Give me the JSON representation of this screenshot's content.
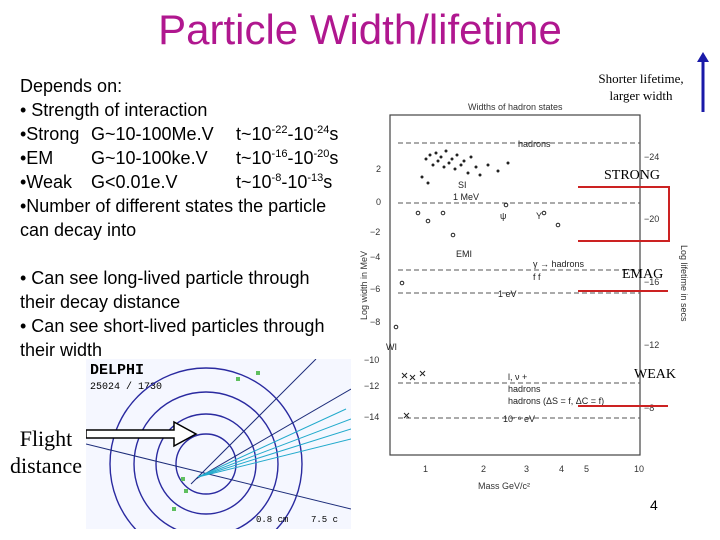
{
  "title": "Particle Width/lifetime",
  "bullets": {
    "depends_on": "Depends on:",
    "strength": "• Strength of interaction",
    "strong_label": "•Strong",
    "strong_width": "G~10-100Me.V",
    "strong_time_base": "t~10",
    "strong_exp1": "-22",
    "strong_mid": "-10",
    "strong_exp2": "-24",
    "strong_unit": "s",
    "em_label": "•EM",
    "em_width": "G~10-100ke.V",
    "em_time_base": "t~10",
    "em_exp1": "-16",
    "em_mid": "-10",
    "em_exp2": "-20",
    "em_unit": "s",
    "weak_label": "•Weak",
    "weak_width": "G<0.01e.V",
    "weak_time_base": "t~10",
    "weak_exp1": "-8",
    "weak_mid": "-10",
    "weak_exp2": "-13",
    "weak_unit": "s",
    "states_1": "•Number of different states the particle",
    "states_2": "can decay into",
    "long_1": "• Can see long-lived particle through",
    "long_2": "their decay distance",
    "short_1": "• Can see short-lived particles through",
    "short_2": "their width"
  },
  "shorter_note": "Shorter lifetime, larger width",
  "bands": {
    "strong": "STRONG",
    "emag": "EMAG",
    "weak": "WEAK"
  },
  "flight_distance": "Flight distance",
  "page_number": "4",
  "delphi": {
    "label": "DELPHI",
    "event": "25024 / 1730",
    "scale_a": "0.8 cm",
    "scale_b": "7.5 c"
  },
  "plot": {
    "title": "Widths of hadron states",
    "y_label": "Log width in MeV",
    "y2_label": "Log lifetime in secs",
    "x_label": "Mass GeV/c²",
    "y_ticks": [
      "2",
      "0",
      "−2",
      "−4",
      "−6",
      "−8",
      "−10",
      "−12",
      "−14"
    ],
    "y2_ticks": [
      "−24",
      "−20",
      "−16",
      "−12",
      "−8"
    ],
    "x_ticks": [
      "1",
      "2",
      "3",
      "4",
      "5",
      "10"
    ],
    "annotations": {
      "hadrons_top": "hadrons",
      "mev": "1 MeV",
      "si": "SI",
      "psi": "ψ",
      "upsilon": "Υ",
      "emi": "EMI",
      "gamma_hadrons": "γ → hadrons",
      "ff": "f f",
      "ev": "1 eV",
      "wi": "WI",
      "lnu": "l, ν +",
      "hadrons_mid": "hadrons",
      "hadrons_weak": "hadrons (ΔS = f, ΔC = f)",
      "ev_small": "10⁻⁶ eV"
    }
  },
  "colors": {
    "title": "#b0178f",
    "band_line": "#cc2222",
    "arrow": "#1a1aa8"
  }
}
